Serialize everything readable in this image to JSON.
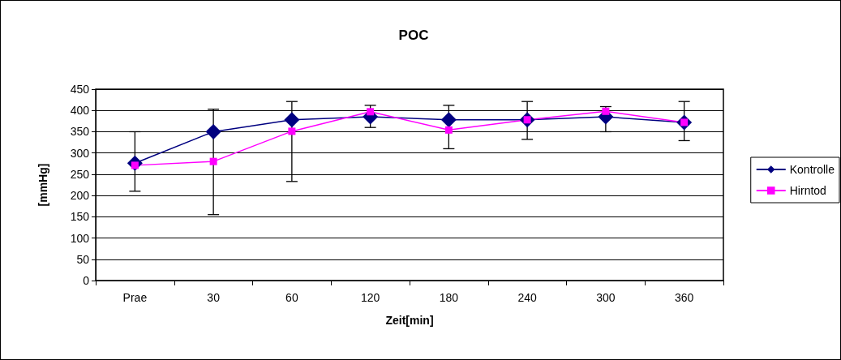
{
  "chart_data": {
    "type": "line",
    "title": "POC",
    "xlabel": "Zeit[min]",
    "ylabel": "[mmHg]",
    "categories": [
      "Prae",
      "30",
      "60",
      "120",
      "180",
      "240",
      "300",
      "360"
    ],
    "ylim": [
      0,
      450
    ],
    "yticks": [
      0,
      50,
      100,
      150,
      200,
      250,
      300,
      350,
      400,
      450
    ],
    "grid": "y",
    "legend": "right",
    "line_style": "solid",
    "series": [
      {
        "name": "Kontrolle",
        "color": "#000080",
        "marker": "diamond",
        "values": [
          276,
          350,
          378,
          385,
          378,
          378,
          385,
          372
        ],
        "errors": [
          [
            210,
            350
          ],
          [
            155,
            403
          ],
          [
            233,
            421
          ],
          [
            360,
            412
          ],
          [
            310,
            412
          ],
          [
            332,
            421
          ],
          [
            350,
            409
          ],
          [
            329,
            421
          ]
        ]
      },
      {
        "name": "Hirntod",
        "color": "#ff00ff",
        "marker": "square",
        "values": [
          271,
          280,
          351,
          397,
          354,
          378,
          398,
          372
        ]
      }
    ]
  }
}
